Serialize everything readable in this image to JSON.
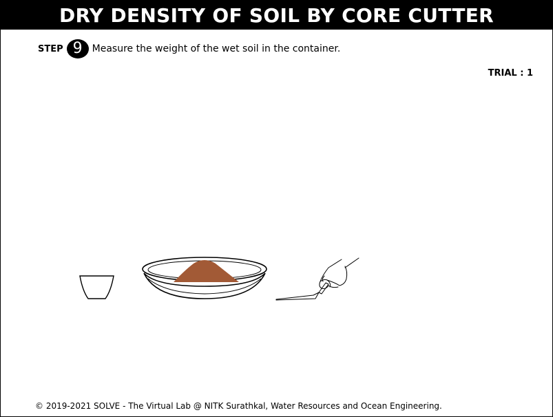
{
  "header": {
    "title": "DRY DENSITY OF SOIL BY CORE CUTTER"
  },
  "step": {
    "label": "STEP",
    "number": "9",
    "instruction": "Measure the weight of the wet soil in the container."
  },
  "trial": {
    "label": "TRIAL : 1"
  },
  "scene": {
    "items": [
      "container-icon",
      "tray-with-soil-icon",
      "hand-trowel-icon"
    ],
    "soil_color": "#a25a36"
  },
  "footer": {
    "copyright": "© 2019-2021 SOLVE - The Virtual Lab @ NITK Surathkal, Water Resources and Ocean Engineering."
  }
}
